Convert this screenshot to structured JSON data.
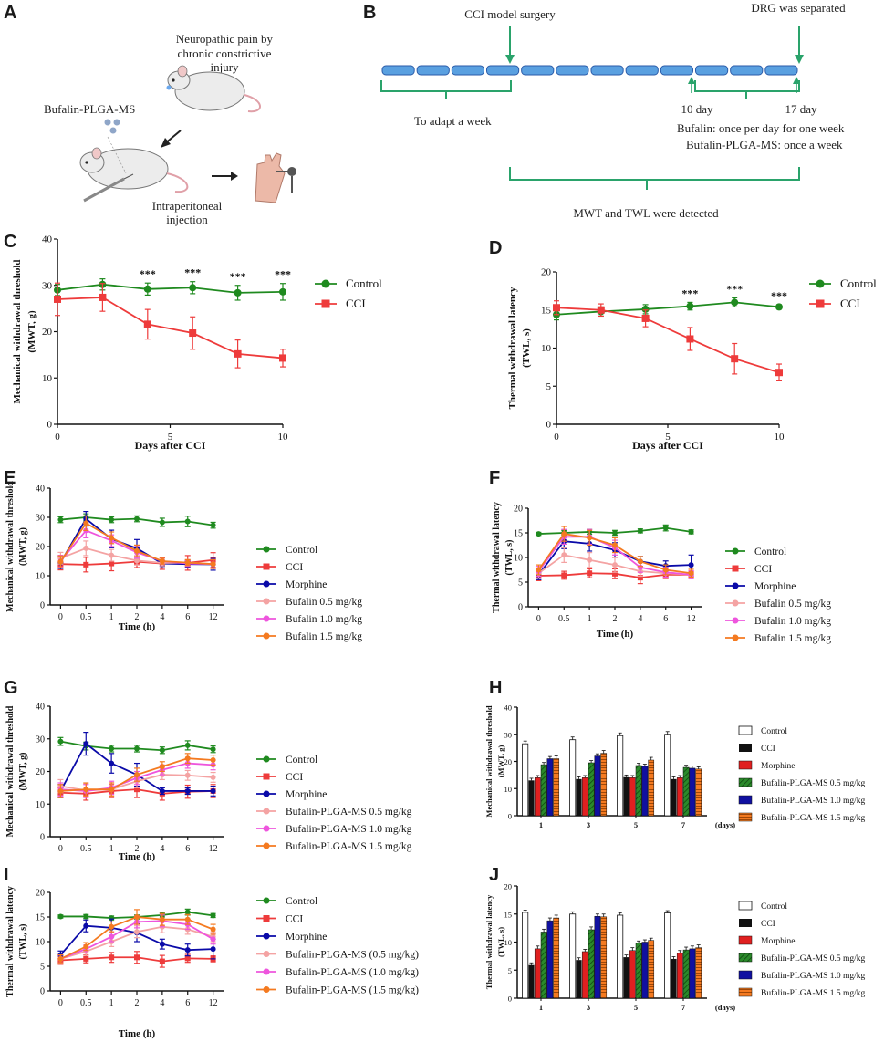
{
  "panels": {
    "A": "A",
    "B": "B",
    "C": "C",
    "D": "D",
    "E": "E",
    "F": "F",
    "G": "G",
    "H": "H",
    "I": "I",
    "J": "J"
  },
  "schematic_a": {
    "title": "Neuropathic pain by chronic constrictive injury",
    "title_line1": "Neuropathic pain by",
    "title_line2": "chronic constrictive",
    "title_line3": "injury",
    "drug": "Bufalin-PLGA-MS",
    "route_line1": "Intraperitoneal",
    "route_line2": "injection"
  },
  "timeline_b": {
    "surgery": "CCI model surgery",
    "dissection": "DRG was  separated",
    "adapt": "To adapt a week",
    "day10": "10 day",
    "day17": "17 day",
    "bufalin": "Bufalin: once per day for one week",
    "ms": "Bufalin-PLGA-MS: once a week",
    "detect": "MWT and TWL were detected"
  },
  "colors": {
    "control": "#1f8a1f",
    "cci": "#ee3b3b",
    "morphine": "#0a0aa8",
    "b05": "#f4a3a3",
    "b10": "#ee55dd",
    "b15": "#f47a20",
    "bracket": "#2aa36b"
  },
  "chart_data": [
    {
      "id": "C",
      "type": "line",
      "ylabel_line1": "Mechanical withdrawal threshold",
      "ylabel_line2": "(MWT, g)",
      "xlabel": "Days after CCI",
      "x": [
        0,
        2,
        4,
        6,
        8,
        10
      ],
      "xticks": [
        "0",
        "5",
        "10"
      ],
      "xtickvals": [
        0,
        5,
        10
      ],
      "ylim": [
        0,
        40
      ],
      "yticks": [
        "0",
        "10",
        "20",
        "30",
        "40"
      ],
      "series": [
        {
          "name": "Control",
          "values": [
            29.0,
            30.2,
            29.2,
            29.5,
            28.4,
            28.6
          ],
          "err": [
            1.2,
            1.2,
            1.3,
            1.3,
            1.6,
            1.8
          ]
        },
        {
          "name": "CCI",
          "values": [
            27.0,
            27.4,
            21.6,
            19.7,
            15.2,
            14.3
          ],
          "err": [
            3.5,
            3.0,
            3.2,
            3.5,
            3.0,
            1.9
          ]
        }
      ],
      "annotations": [
        "***",
        "***",
        "***",
        "***"
      ],
      "annotation_x": [
        4,
        6,
        8,
        10
      ]
    },
    {
      "id": "D",
      "type": "line",
      "ylabel_line1": "Thermal withdrawal latency",
      "ylabel_line2": "(TWL, s)",
      "xlabel": "Days after CCI",
      "x": [
        0,
        2,
        4,
        6,
        8,
        10
      ],
      "xticks": [
        "0",
        "5",
        "10"
      ],
      "xtickvals": [
        0,
        5,
        10
      ],
      "ylim": [
        0,
        20
      ],
      "yticks": [
        "0",
        "5",
        "10",
        "15",
        "20"
      ],
      "series": [
        {
          "name": "Control",
          "values": [
            14.4,
            14.8,
            15.1,
            15.5,
            16.0,
            15.4
          ],
          "err": [
            0.7,
            0.6,
            0.6,
            0.5,
            0.6,
            0.3
          ]
        },
        {
          "name": "CCI",
          "values": [
            15.3,
            15.0,
            13.9,
            11.2,
            8.6,
            6.8
          ],
          "err": [
            0.9,
            0.8,
            1.1,
            1.5,
            2.0,
            1.1
          ]
        }
      ],
      "annotations": [
        "***",
        "***",
        "***"
      ],
      "annotation_x": [
        6,
        8,
        10
      ]
    },
    {
      "id": "E",
      "type": "line",
      "ylabel_line1": "Mechanical withdrawal threshold",
      "ylabel_line2": "(MWT, g)",
      "xlabel": "Time (h)",
      "x": [
        "0",
        "0.5",
        "1",
        "2",
        "4",
        "6",
        "12"
      ],
      "ylim": [
        0,
        40
      ],
      "yticks": [
        "0",
        "10",
        "20",
        "30",
        "40"
      ],
      "series": [
        {
          "name": "Control",
          "values": [
            29.2,
            30.0,
            29.2,
            29.5,
            28.3,
            28.6,
            27.3
          ],
          "err": [
            1.0,
            1.2,
            1.0,
            1.0,
            1.4,
            1.8,
            1.0
          ]
        },
        {
          "name": "CCI",
          "values": [
            14.0,
            13.8,
            14.2,
            14.8,
            14.2,
            14.4,
            15.4
          ],
          "err": [
            2.0,
            2.5,
            2.5,
            2.0,
            2.0,
            2.5,
            2.5
          ]
        },
        {
          "name": "Morphine",
          "values": [
            14.5,
            29.5,
            22.6,
            19.4,
            14.2,
            14.0,
            13.9
          ],
          "err": [
            2.0,
            2.5,
            3.0,
            3.0,
            1.0,
            1.0,
            2.0
          ]
        },
        {
          "name": "Bufalin 0.5 mg/kg",
          "values": [
            16.0,
            19.4,
            17.0,
            15.2,
            14.4,
            14.5,
            14.0
          ],
          "err": [
            2.0,
            2.5,
            2.0,
            1.5,
            1.0,
            1.0,
            1.5
          ]
        },
        {
          "name": "Bufalin 1.0 mg/kg",
          "values": [
            15.0,
            25.5,
            22.0,
            18.0,
            15.0,
            14.2,
            14.0
          ],
          "err": [
            2.0,
            2.5,
            2.0,
            2.0,
            1.0,
            1.0,
            1.5
          ]
        },
        {
          "name": "Bufalin 1.5 mg/kg",
          "values": [
            14.8,
            28.0,
            23.0,
            18.5,
            15.0,
            14.5,
            14.0
          ],
          "err": [
            2.0,
            2.5,
            2.0,
            2.0,
            1.0,
            1.0,
            1.5
          ]
        }
      ]
    },
    {
      "id": "F",
      "type": "line",
      "ylabel_line1": "Thermal withdrawal latency",
      "ylabel_line2": "(TWL, s)",
      "xlabel": "Time (h)",
      "x": [
        "0",
        "0.5",
        "1",
        "2",
        "4",
        "6",
        "12"
      ],
      "ylim": [
        0,
        20
      ],
      "yticks": [
        "0",
        "5",
        "10",
        "15",
        "20"
      ],
      "series": [
        {
          "name": "Control",
          "values": [
            14.8,
            15.0,
            15.2,
            15.0,
            15.4,
            16.0,
            15.2
          ],
          "err": [
            0.3,
            0.5,
            0.5,
            0.5,
            0.4,
            0.6,
            0.4
          ]
        },
        {
          "name": "CCI",
          "values": [
            6.3,
            6.4,
            6.8,
            6.7,
            5.9,
            6.5,
            6.5
          ],
          "err": [
            1.0,
            0.8,
            0.9,
            1.0,
            1.2,
            0.8,
            0.6
          ]
        },
        {
          "name": "Morphine",
          "values": [
            6.5,
            13.3,
            12.8,
            11.5,
            9.2,
            8.3,
            8.5
          ],
          "err": [
            1.0,
            1.5,
            1.5,
            1.5,
            1.0,
            1.0,
            2.0
          ]
        },
        {
          "name": "Bufalin 0.5 mg/kg",
          "values": [
            6.8,
            10.5,
            9.5,
            8.5,
            7.2,
            6.8,
            6.5
          ],
          "err": [
            1.0,
            1.5,
            1.5,
            1.5,
            1.0,
            1.0,
            0.8
          ]
        },
        {
          "name": "Bufalin 1.0 mg/kg",
          "values": [
            7.2,
            14.2,
            14.2,
            12.0,
            8.0,
            7.0,
            6.5
          ],
          "err": [
            1.0,
            1.5,
            1.5,
            1.5,
            1.0,
            1.0,
            0.8
          ]
        },
        {
          "name": "Bufalin 1.5 mg/kg",
          "values": [
            7.5,
            14.8,
            14.0,
            12.5,
            9.2,
            7.5,
            6.8
          ],
          "err": [
            1.0,
            1.5,
            1.5,
            1.5,
            1.0,
            1.0,
            0.8
          ]
        }
      ]
    },
    {
      "id": "G",
      "type": "line",
      "ylabel_line1": "Mechanical withdrawal threshold",
      "ylabel_line2": "(MWT, g)",
      "xlabel": "Time (h)",
      "x": [
        "0",
        "0.5",
        "1",
        "2",
        "4",
        "6",
        "12"
      ],
      "ylim": [
        0,
        40
      ],
      "yticks": [
        "0",
        "10",
        "20",
        "30",
        "40"
      ],
      "series": [
        {
          "name": "Control",
          "values": [
            29.2,
            27.8,
            27.0,
            27.0,
            26.5,
            28.0,
            26.8
          ],
          "err": [
            1.2,
            1.2,
            1.0,
            1.0,
            1.0,
            1.4,
            1.0
          ]
        },
        {
          "name": "CCI",
          "values": [
            13.5,
            13.2,
            14.0,
            14.5,
            13.2,
            13.8,
            14.0
          ],
          "err": [
            1.5,
            2.0,
            2.0,
            2.5,
            2.0,
            2.0,
            2.0
          ]
        },
        {
          "name": "Morphine",
          "values": [
            14.0,
            28.5,
            22.5,
            19.0,
            14.0,
            14.0,
            14.0
          ],
          "err": [
            2.0,
            3.5,
            3.0,
            3.5,
            1.0,
            1.0,
            1.5
          ]
        },
        {
          "name": "Bufalin-PLGA-MS 0.5 mg/kg",
          "values": [
            15.5,
            14.2,
            14.5,
            17.0,
            19.0,
            18.8,
            18.2
          ],
          "err": [
            2.0,
            2.0,
            2.0,
            2.0,
            1.5,
            1.5,
            1.5
          ]
        },
        {
          "name": "Bufalin-PLGA-MS 1.0 mg/kg",
          "values": [
            14.5,
            14.0,
            15.0,
            18.0,
            20.5,
            22.5,
            22.0
          ],
          "err": [
            2.0,
            2.0,
            2.0,
            2.0,
            1.5,
            1.5,
            1.5
          ]
        },
        {
          "name": "Bufalin-PLGA-MS 1.5 mg/kg",
          "values": [
            14.0,
            14.5,
            14.5,
            19.0,
            21.5,
            24.0,
            23.5
          ],
          "err": [
            2.0,
            2.0,
            2.0,
            2.0,
            1.5,
            1.5,
            1.5
          ]
        }
      ]
    },
    {
      "id": "H",
      "type": "bar",
      "ylabel_line1": "Mechanical withdrawal threshold",
      "ylabel_line2": "(MWT, g)",
      "categories": [
        "1",
        "3",
        "5",
        "7"
      ],
      "xunit": "(days)",
      "ylim": [
        0,
        40
      ],
      "yticks": [
        "0",
        "10",
        "20",
        "30",
        "40"
      ],
      "series": [
        {
          "name": "Control",
          "values": [
            26.5,
            28.0,
            29.5,
            30.0
          ],
          "err": [
            1.0,
            1.0,
            1.0,
            1.0
          ]
        },
        {
          "name": "CCI",
          "values": [
            13.0,
            13.5,
            14.2,
            13.5
          ],
          "err": [
            0.8,
            0.8,
            0.8,
            0.8
          ]
        },
        {
          "name": "Morphine",
          "values": [
            14.0,
            14.0,
            14.0,
            14.0
          ],
          "err": [
            0.8,
            0.8,
            0.8,
            0.8
          ]
        },
        {
          "name": "Bufalin-PLGA-MS 0.5 mg/kg",
          "values": [
            18.8,
            19.5,
            18.5,
            17.8
          ],
          "err": [
            0.8,
            0.8,
            0.8,
            0.8
          ]
        },
        {
          "name": "Bufalin-PLGA-MS 1.0 mg/kg",
          "values": [
            21.0,
            22.0,
            18.2,
            17.5
          ],
          "err": [
            0.8,
            0.8,
            0.8,
            0.8
          ]
        },
        {
          "name": "Bufalin-PLGA-MS 1.5 mg/kg",
          "values": [
            21.0,
            23.0,
            20.5,
            17.2
          ],
          "err": [
            1.0,
            1.0,
            1.0,
            0.8
          ]
        }
      ]
    },
    {
      "id": "I",
      "type": "line",
      "ylabel_line1": "Thermal withdrawal latency",
      "ylabel_line2": "(TWL, s)",
      "xlabel": "Time (h)",
      "x": [
        "0",
        "0.5",
        "1",
        "2",
        "4",
        "6",
        "12"
      ],
      "ylim": [
        0,
        20
      ],
      "yticks": [
        "0",
        "5",
        "10",
        "15",
        "20"
      ],
      "series": [
        {
          "name": "Control",
          "values": [
            15.1,
            15.1,
            14.8,
            15.0,
            15.4,
            16.0,
            15.3
          ],
          "err": [
            0.3,
            0.4,
            0.4,
            0.4,
            0.4,
            0.6,
            0.4
          ]
        },
        {
          "name": "CCI",
          "values": [
            6.2,
            6.5,
            6.8,
            6.8,
            6.0,
            6.6,
            6.5
          ],
          "err": [
            0.8,
            0.8,
            1.0,
            1.2,
            1.2,
            0.8,
            0.6
          ]
        },
        {
          "name": "Morphine",
          "values": [
            7.3,
            13.2,
            12.8,
            11.8,
            9.5,
            8.3,
            8.5
          ],
          "err": [
            0.8,
            1.2,
            1.8,
            1.8,
            1.0,
            1.2,
            2.0
          ]
        },
        {
          "name": "Bufalin-PLGA-MS (0.5 mg/kg)",
          "values": [
            6.5,
            8.0,
            10.0,
            12.0,
            13.0,
            12.5,
            11.0
          ],
          "err": [
            0.8,
            0.8,
            1.0,
            1.2,
            1.2,
            1.0,
            1.0
          ]
        },
        {
          "name": "Bufalin-PLGA-MS (1.0 mg/kg)",
          "values": [
            6.5,
            8.5,
            11.0,
            14.0,
            14.2,
            13.5,
            10.5
          ],
          "err": [
            0.8,
            0.8,
            1.0,
            1.2,
            1.2,
            1.0,
            1.0
          ]
        },
        {
          "name": "Bufalin-PLGA-MS (1.5 mg/kg)",
          "values": [
            6.5,
            9.0,
            13.0,
            15.0,
            14.5,
            14.5,
            12.5
          ],
          "err": [
            0.8,
            0.8,
            1.0,
            1.5,
            1.2,
            1.0,
            1.0
          ]
        }
      ]
    },
    {
      "id": "J",
      "type": "bar",
      "ylabel_line1": "Thermal withdrawal latency",
      "ylabel_line2": "(TWL, s)",
      "categories": [
        "1",
        "3",
        "5",
        "7"
      ],
      "xunit": "(days)",
      "ylim": [
        0,
        20
      ],
      "yticks": [
        "0",
        "5",
        "10",
        "15",
        "20"
      ],
      "series": [
        {
          "name": "Control",
          "values": [
            15.3,
            15.0,
            14.8,
            15.2
          ],
          "err": [
            0.4,
            0.4,
            0.4,
            0.4
          ]
        },
        {
          "name": "CCI",
          "values": [
            5.9,
            6.8,
            7.3,
            7.0
          ],
          "err": [
            0.4,
            0.4,
            0.4,
            0.4
          ]
        },
        {
          "name": "Morphine",
          "values": [
            8.8,
            8.3,
            8.5,
            8.0
          ],
          "err": [
            0.5,
            0.4,
            0.5,
            0.5
          ]
        },
        {
          "name": "Bufalin-PLGA-MS 0.5 mg/kg",
          "values": [
            11.8,
            12.2,
            9.8,
            8.6
          ],
          "err": [
            0.5,
            0.5,
            0.4,
            0.5
          ]
        },
        {
          "name": "Bufalin-PLGA-MS 1.0 mg/kg",
          "values": [
            13.8,
            14.6,
            10.0,
            8.8
          ],
          "err": [
            0.5,
            0.4,
            0.4,
            0.5
          ]
        },
        {
          "name": "Bufalin-PLGA-MS 1.5 mg/kg",
          "values": [
            14.3,
            14.5,
            10.3,
            9.0
          ],
          "err": [
            0.5,
            0.5,
            0.4,
            0.5
          ]
        }
      ]
    }
  ]
}
